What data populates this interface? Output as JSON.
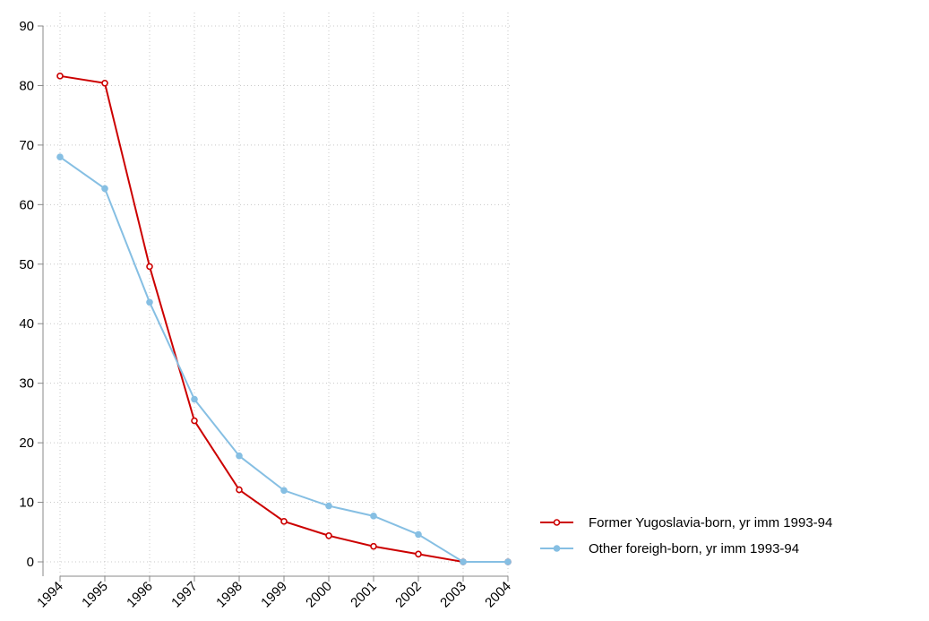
{
  "chart_data": {
    "type": "line",
    "x": [
      1994,
      1995,
      1996,
      1997,
      1998,
      1999,
      2000,
      2001,
      2002,
      2003,
      2004
    ],
    "series": [
      {
        "name": "Former Yugoslavia-born, yr imm 1993-94",
        "color": "#cc0000",
        "marker": "hollow",
        "values": [
          81.6,
          80.4,
          49.6,
          23.7,
          12.1,
          6.8,
          4.4,
          2.6,
          1.3,
          0,
          0
        ]
      },
      {
        "name": "Other foreigh-born, yr imm 1993-94",
        "color": "#86bfe3",
        "marker": "filled",
        "values": [
          68,
          62.7,
          43.6,
          27.3,
          17.8,
          12,
          9.4,
          7.7,
          4.6,
          0,
          0
        ]
      }
    ],
    "xlim": [
      1994,
      2004
    ],
    "xticks": [
      1994,
      1995,
      1996,
      1997,
      1998,
      1999,
      2000,
      2001,
      2002,
      2003,
      2004
    ],
    "ylim": [
      0,
      90
    ],
    "yticks": [
      0,
      10,
      20,
      30,
      40,
      50,
      60,
      70,
      80,
      90
    ],
    "grid": true,
    "legend": "right"
  }
}
